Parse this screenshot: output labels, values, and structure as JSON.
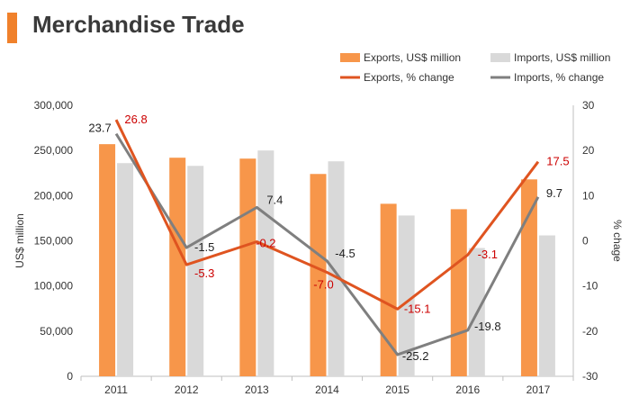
{
  "header": {
    "title": "Merchandise Trade"
  },
  "colors": {
    "accent": "#f0812b",
    "exports_bar": "#f7964a",
    "imports_bar": "#d9d9d9",
    "exports_line": "#df5420",
    "imports_line": "#7f7f7f",
    "red_label": "#cc0000",
    "dark_label": "#222222",
    "axis_text": "#333333"
  },
  "chart_data": {
    "type": "bar",
    "categories": [
      "2011",
      "2012",
      "2013",
      "2014",
      "2015",
      "2016",
      "2017"
    ],
    "ylabel": "US$ million",
    "y2label": "% chage",
    "ylim": [
      0,
      300000
    ],
    "y2lim": [
      -30,
      30
    ],
    "yticks": [
      "0",
      "50,000",
      "100,000",
      "150,000",
      "200,000",
      "250,000",
      "300,000"
    ],
    "y2ticks": [
      "-30",
      "-20",
      "-10",
      "0",
      "10",
      "20",
      "30"
    ],
    "legend_position": "top-right",
    "series": [
      {
        "name": "Exports, US$ million",
        "kind": "bar",
        "axis": "left",
        "values": [
          257000,
          242000,
          241000,
          224000,
          191000,
          185000,
          218000
        ]
      },
      {
        "name": "Imports, US$ million",
        "kind": "bar",
        "axis": "left",
        "values": [
          236000,
          233000,
          250000,
          238000,
          178000,
          142000,
          156000
        ]
      },
      {
        "name": "Exports, % change",
        "kind": "line",
        "axis": "right",
        "values": [
          26.8,
          -5.3,
          -0.2,
          -7.0,
          -15.1,
          -3.1,
          17.5
        ],
        "labels": [
          "26.8",
          "-5.3",
          "-0.2",
          "-7.0",
          "-15.1",
          "-3.1",
          "17.5"
        ]
      },
      {
        "name": "Imports, % change",
        "kind": "line",
        "axis": "right",
        "values": [
          23.7,
          -1.5,
          7.4,
          -4.5,
          -25.2,
          -19.8,
          9.7
        ],
        "labels": [
          "23.7",
          "-1.5",
          "7.4",
          "-4.5",
          "-25.2",
          "-19.8",
          "9.7"
        ]
      }
    ]
  }
}
